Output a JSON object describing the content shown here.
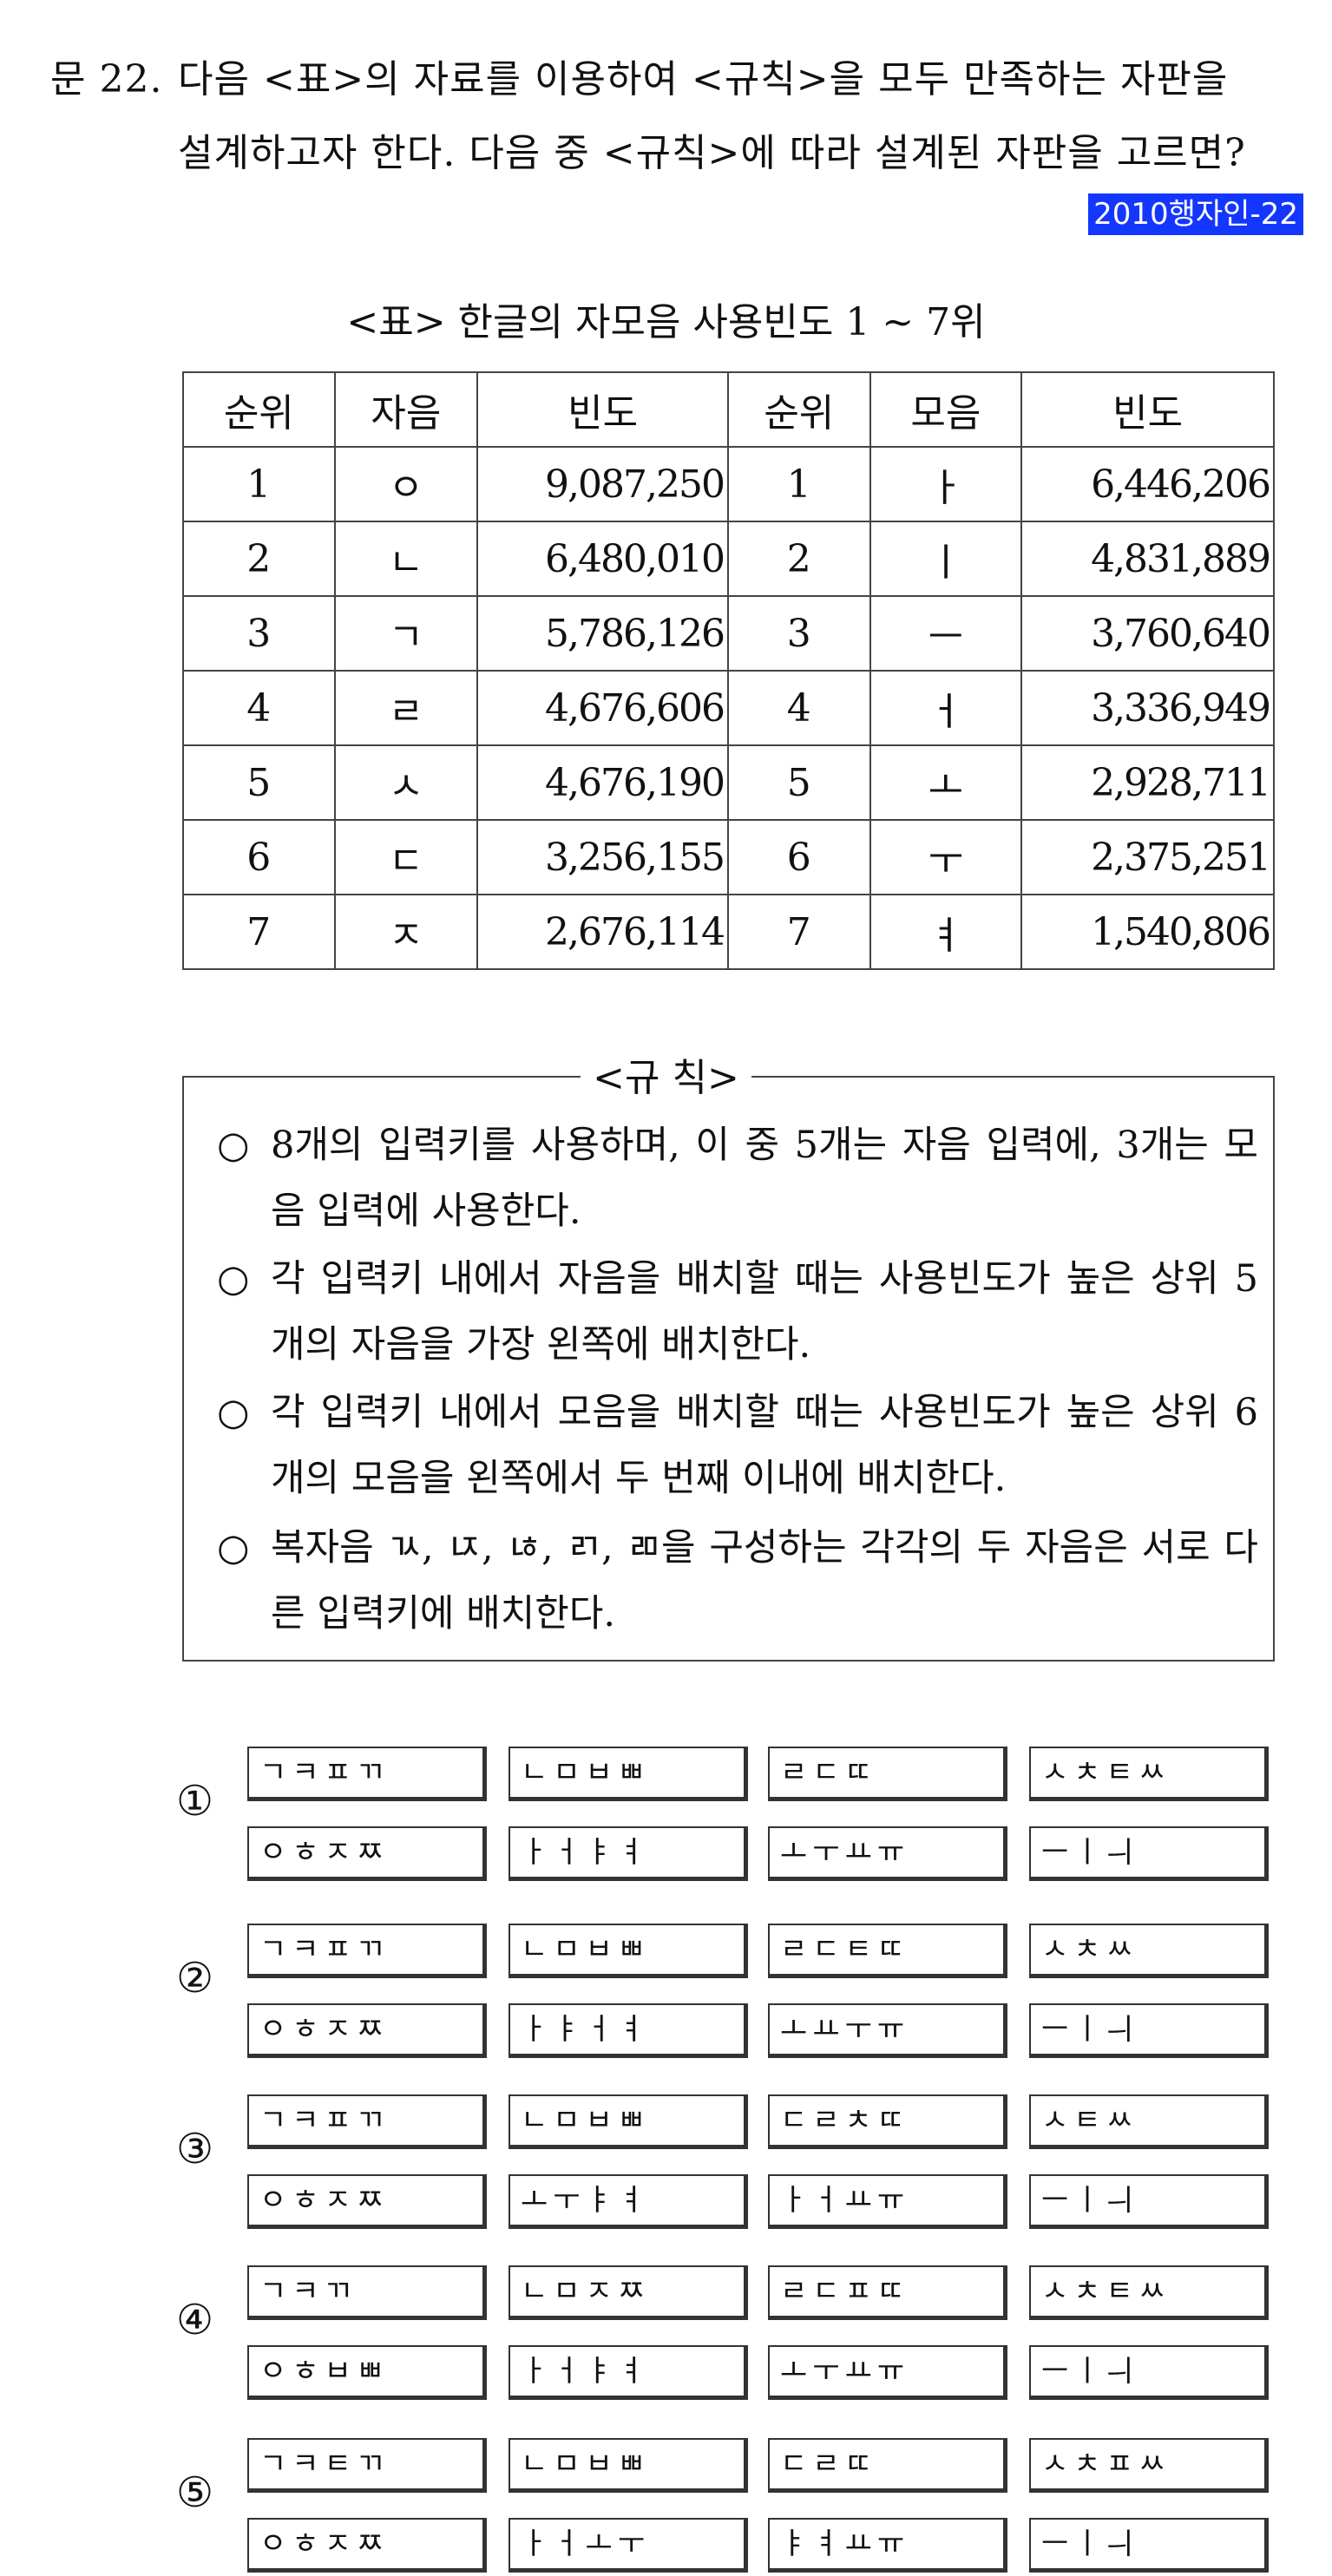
{
  "question": {
    "number": "문 22.",
    "line1": "다음 <표>의 자료를 이용하여 <규칙>을 모두 만족하는 자판을",
    "line2": "설계하고자 한다. 다음 중 <규칙>에 따라 설계된 자판을 고르면?",
    "tag": "2010행자인-22"
  },
  "table": {
    "caption": "<표> 한글의 자모음 사용빈도 1 ~ 7위",
    "headers": [
      "순위",
      "자음",
      "빈도",
      "순위",
      "모음",
      "빈도"
    ],
    "rows": [
      [
        "1",
        "ㅇ",
        "9,087,250",
        "1",
        "ㅏ",
        "6,446,206"
      ],
      [
        "2",
        "ㄴ",
        "6,480,010",
        "2",
        "ㅣ",
        "4,831,889"
      ],
      [
        "3",
        "ㄱ",
        "5,786,126",
        "3",
        "ㅡ",
        "3,760,640"
      ],
      [
        "4",
        "ㄹ",
        "4,676,606",
        "4",
        "ㅓ",
        "3,336,949"
      ],
      [
        "5",
        "ㅅ",
        "4,676,190",
        "5",
        "ㅗ",
        "2,928,711"
      ],
      [
        "6",
        "ㄷ",
        "3,256,155",
        "6",
        "ㅜ",
        "2,375,251"
      ],
      [
        "7",
        "ㅈ",
        "2,676,114",
        "7",
        "ㅕ",
        "1,540,806"
      ]
    ]
  },
  "rules": {
    "title": "<규  칙>",
    "items": [
      {
        "mark": "○",
        "text": "8개의 입력키를 사용하며, 이 중 5개는 자음 입력에, 3개는 모음 입력에 사용한다."
      },
      {
        "mark": "○",
        "text": "각 입력키 내에서 자음을 배치할 때는 사용빈도가 높은 상위 5개의 자음을 가장 왼쪽에 배치한다."
      },
      {
        "mark": "○",
        "text": "각 입력키 내에서 모음을 배치할 때는 사용빈도가 높은 상위 6개의 모음을 왼쪽에서 두 번째 이내에 배치한다."
      },
      {
        "mark": "○",
        "text": "복자음 ㄳ, ㄵ, ㄶ, ㄺ, ㄻ을 구성하는 각각의 두 자음은 서로 다른 입력키에 배치한다."
      }
    ]
  },
  "options": [
    {
      "label": "①",
      "keys": [
        "ㄱㅋㅍㄲ",
        "ㄴㅁㅂㅃ",
        "ㄹㄷㄸ",
        "ㅅㅊㅌㅆ",
        "ㅇㅎㅈㅉ",
        "ㅏㅓㅑㅕ",
        "ㅗㅜㅛㅠ",
        "ㅡㅣㅢ"
      ]
    },
    {
      "label": "②",
      "keys": [
        "ㄱㅋㅍㄲ",
        "ㄴㅁㅂㅃ",
        "ㄹㄷㅌㄸ",
        "ㅅㅊㅆ",
        "ㅇㅎㅈㅉ",
        "ㅏㅑㅓㅕ",
        "ㅗㅛㅜㅠ",
        "ㅡㅣㅢ"
      ]
    },
    {
      "label": "③",
      "keys": [
        "ㄱㅋㅍㄲ",
        "ㄴㅁㅂㅃ",
        "ㄷㄹㅊㄸ",
        "ㅅㅌㅆ",
        "ㅇㅎㅈㅉ",
        "ㅗㅜㅑㅕ",
        "ㅏㅓㅛㅠ",
        "ㅡㅣㅢ"
      ]
    },
    {
      "label": "④",
      "keys": [
        "ㄱㅋㄲ",
        "ㄴㅁㅈㅉ",
        "ㄹㄷㅍㄸ",
        "ㅅㅊㅌㅆ",
        "ㅇㅎㅂㅃ",
        "ㅏㅓㅑㅕ",
        "ㅗㅜㅛㅠ",
        "ㅡㅣㅢ"
      ]
    },
    {
      "label": "⑤",
      "keys": [
        "ㄱㅋㅌㄲ",
        "ㄴㅁㅂㅃ",
        "ㄷㄹㄸ",
        "ㅅㅊㅍㅆ",
        "ㅇㅎㅈㅉ",
        "ㅏㅓㅗㅜ",
        "ㅑㅕㅛㅠ",
        "ㅡㅣㅢ"
      ]
    }
  ]
}
